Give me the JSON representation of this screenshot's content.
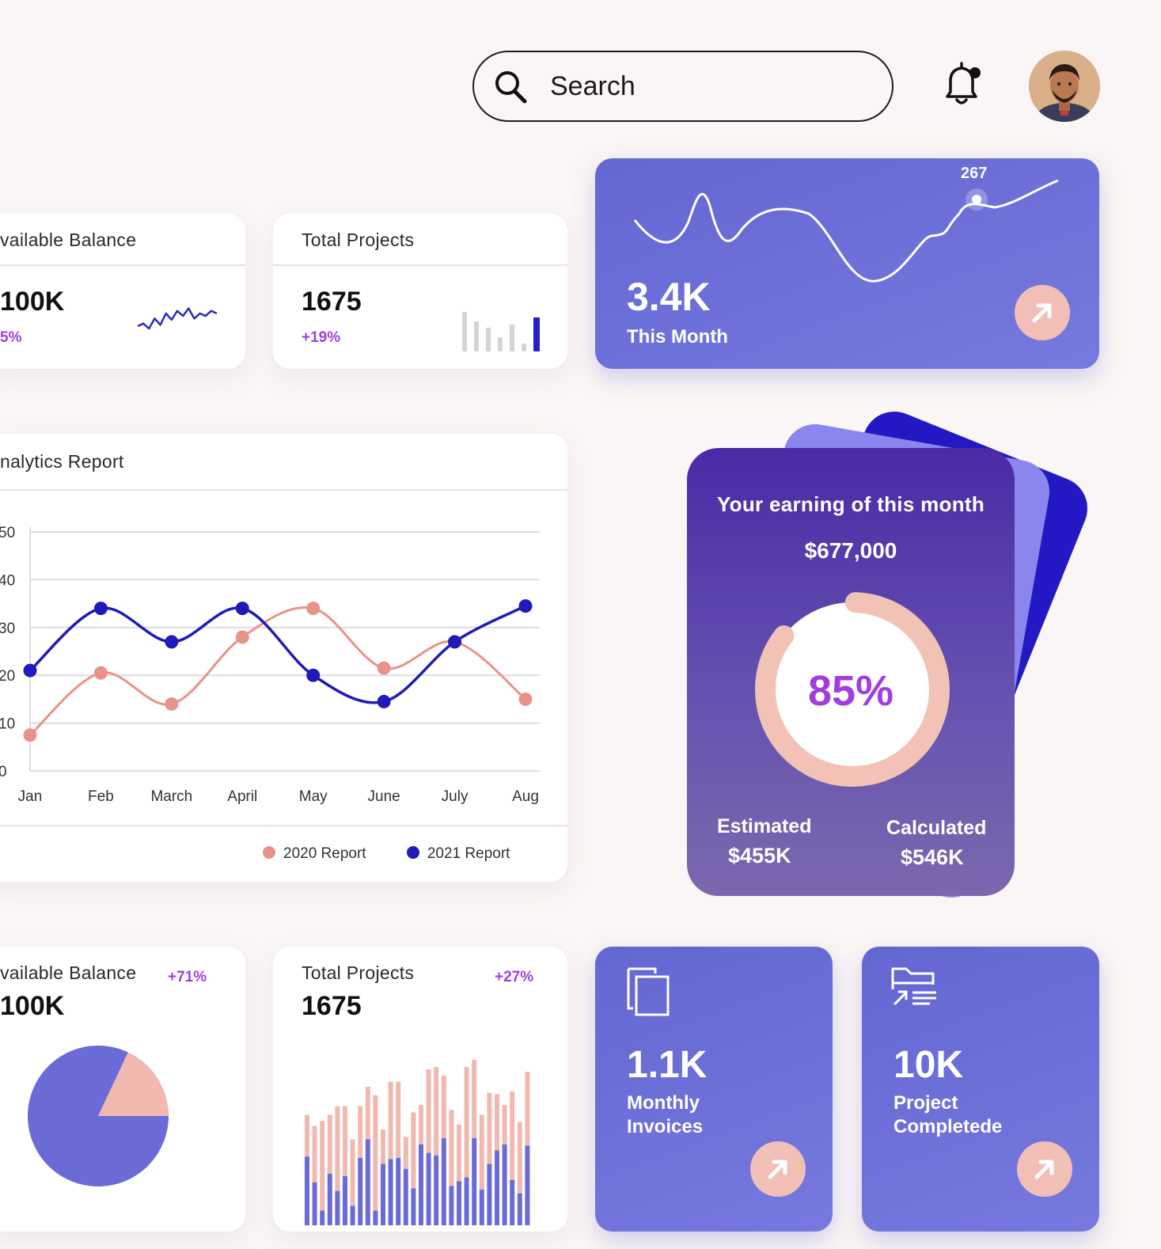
{
  "header": {
    "search_placeholder": "Search"
  },
  "stat_cards": {
    "balance": {
      "title": "vailable Balance",
      "value": "100K",
      "change": "5%"
    },
    "projects": {
      "title": "Total Projects",
      "value": "1675",
      "change": "+19%"
    }
  },
  "month_card": {
    "value": "3.4K",
    "label": "This Month",
    "peak_label": "267"
  },
  "analytics": {
    "title": "nalytics Report",
    "legend": [
      "2020 Report",
      "2021 Report"
    ]
  },
  "earning": {
    "title": "Your earning of this month",
    "amount": "$677,000",
    "percent_label": "85%",
    "progress": 0.85,
    "estimated_label": "Estimated",
    "estimated_value": "$455K",
    "calculated_label": "Calculated",
    "calculated_value": "$546K"
  },
  "bottom_cards": {
    "balance": {
      "title": "vailable Balance",
      "value": "100K",
      "change": "+71%"
    },
    "projects": {
      "title": "Total Projects",
      "value": "1675",
      "change": "+27%"
    },
    "invoices": {
      "value": "1.1K",
      "label_line1": "Monthly",
      "label_line2": "Invoices"
    },
    "completed": {
      "value": "10K",
      "label_line1": "Project",
      "label_line2": "Completede"
    }
  },
  "colors": {
    "accent": "#6a6bd6",
    "pink": "#f0b8ae",
    "navy": "#1f1bb8",
    "violet": "#a23ee0"
  },
  "chart_data": [
    {
      "type": "line",
      "title": "nalytics Report",
      "categories": [
        "Jan",
        "Feb",
        "March",
        "April",
        "May",
        "June",
        "July",
        "Aug"
      ],
      "yticks": [
        "0",
        "10",
        "20",
        "30",
        "40",
        "50"
      ],
      "ylim": [
        0,
        50
      ],
      "grid": true,
      "legend_position": "bottom-right",
      "series": [
        {
          "name": "2020 Report",
          "color": "#e8938a",
          "values": [
            7.5,
            20.5,
            14,
            28,
            34,
            21.5,
            27,
            15
          ]
        },
        {
          "name": "2021 Report",
          "color": "#1f1bb8",
          "values": [
            21,
            34,
            27,
            34,
            20,
            14.5,
            27,
            34.5
          ]
        }
      ]
    },
    {
      "type": "pie",
      "slices": [
        {
          "value": 0.82,
          "color": "#6a6bd6"
        },
        {
          "value": 0.18,
          "color": "#f0b8ae"
        }
      ]
    },
    {
      "type": "bar",
      "stacked": true,
      "series": [
        {
          "color": "#6a6bd6",
          "values": [
            56,
            35,
            12,
            42,
            28,
            40,
            16,
            55,
            70,
            12,
            50,
            54,
            55,
            46,
            30,
            66,
            59,
            57,
            71,
            32,
            36,
            39,
            71,
            29,
            50,
            61,
            66,
            37,
            26,
            65
          ]
        },
        {
          "color": "#f0b8ae",
          "values": [
            34,
            46,
            73,
            48,
            69,
            57,
            54,
            42,
            43,
            94,
            28,
            63,
            62,
            26,
            62,
            32,
            68,
            72,
            51,
            62,
            46,
            90,
            64,
            61,
            58,
            46,
            32,
            72,
            58,
            60
          ]
        }
      ]
    },
    {
      "type": "bar",
      "title": "Total Projects",
      "values": [
        50,
        38,
        30,
        18,
        34,
        10,
        43
      ]
    },
    {
      "type": "line",
      "values": [
        10,
        12,
        8,
        16,
        11,
        20,
        15,
        22,
        18,
        24,
        16,
        20,
        18,
        22,
        20
      ]
    }
  ]
}
